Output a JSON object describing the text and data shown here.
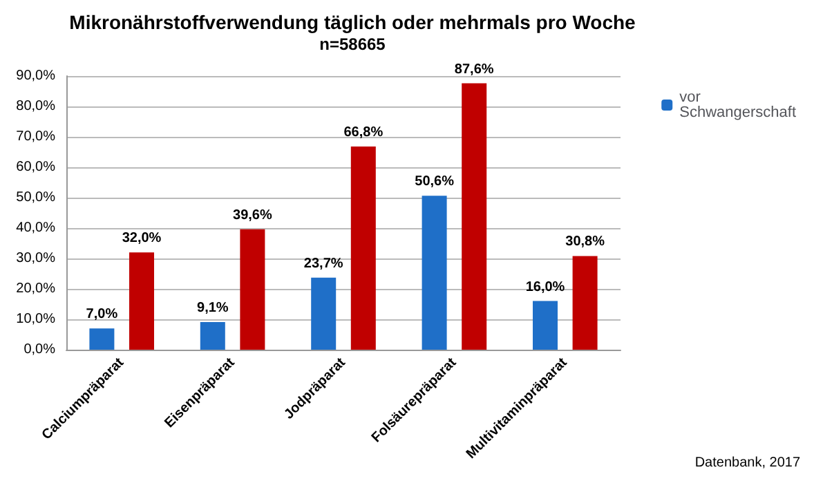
{
  "chart_data": {
    "type": "bar",
    "title": "Mikronährstoffverwendung täglich oder mehrmals pro Woche",
    "subtitle": "n=58665",
    "categories": [
      "Calciumpräparat",
      "Eisenpräparat",
      "Jodpräparat",
      "Folsäurepräparat",
      "Multivitaminpräparat"
    ],
    "series": [
      {
        "name": "vor Schwangerschaft",
        "color": "#1f6fc8",
        "values": [
          7.0,
          9.1,
          23.7,
          50.6,
          16.0
        ],
        "value_labels": [
          "7,0%",
          "9,1%",
          "23,7%",
          "50,6%",
          "16,0%"
        ]
      },
      {
        "color": "#c00000",
        "values": [
          32.0,
          39.6,
          66.8,
          87.6,
          30.8
        ],
        "value_labels": [
          "32,0%",
          "39,6%",
          "66,8%",
          "87,6%",
          "30,8%"
        ]
      }
    ],
    "ylim": [
      0,
      90
    ],
    "yticks": [
      {
        "value": 0,
        "label": "0,0%"
      },
      {
        "value": 10,
        "label": "10,0%"
      },
      {
        "value": 20,
        "label": "20,0%"
      },
      {
        "value": 30,
        "label": "30,0%"
      },
      {
        "value": 40,
        "label": "40,0%"
      },
      {
        "value": 50,
        "label": "50,0%"
      },
      {
        "value": 60,
        "label": "60,0%"
      },
      {
        "value": 70,
        "label": "70,0%"
      },
      {
        "value": 80,
        "label": "80,0%"
      },
      {
        "value": 90,
        "label": "90,0%"
      }
    ],
    "grid": "y",
    "legend": "top right",
    "annotations": [
      "Datenbank, 2017"
    ]
  }
}
